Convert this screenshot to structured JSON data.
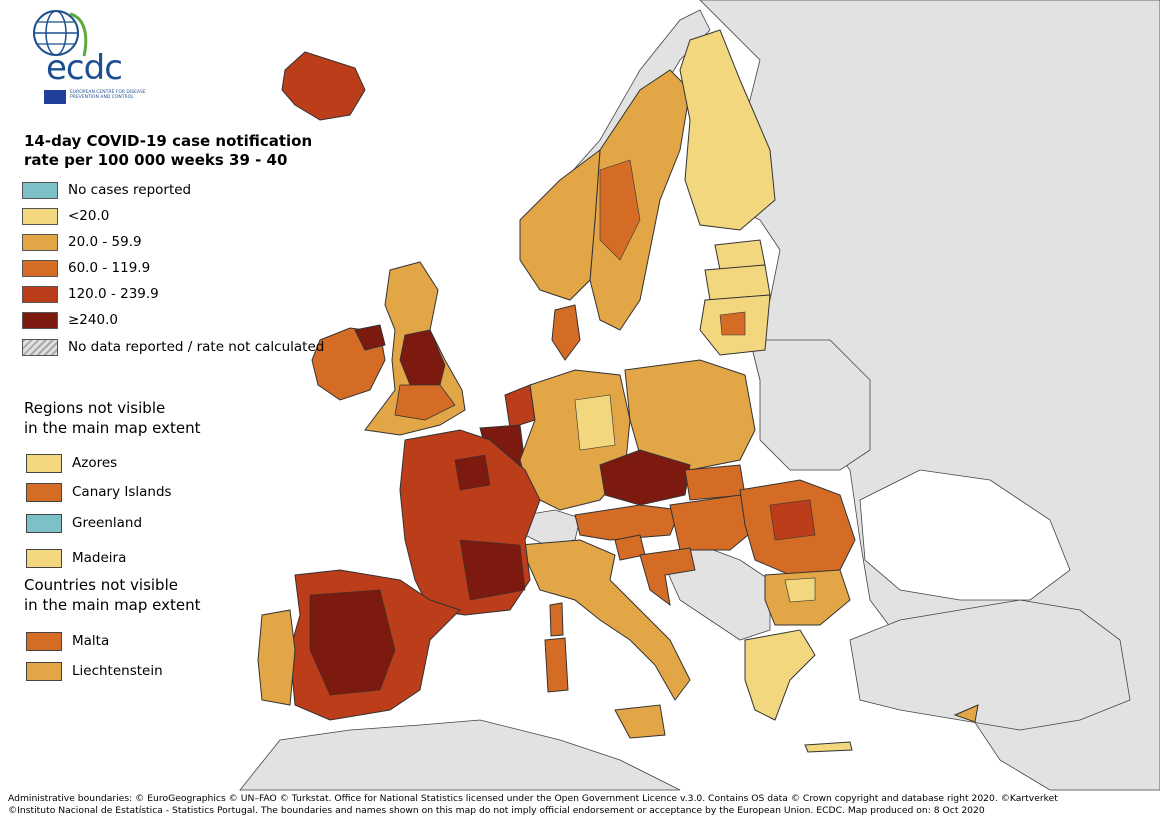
{
  "logo": {
    "word": "ecdc",
    "subtitle": "EUROPEAN CENTRE FOR DISEASE PREVENTION AND CONTROL"
  },
  "legend": {
    "title_line1": "14-day COVID-19 case notification",
    "title_line2": "rate per 100 000 weeks 39 - 40",
    "classes": [
      {
        "label": "No cases reported",
        "color": "#7cc0c8"
      },
      {
        "label": "<20.0",
        "color": "#f2d77f"
      },
      {
        "label": "20.0 - 59.9",
        "color": "#e3a646"
      },
      {
        "label": "60.0 - 119.9",
        "color": "#d46c26"
      },
      {
        "label": "120.0 - 239.9",
        "color": "#bb3d1a"
      },
      {
        "label": "≥240.0",
        "color": "#7d1a10"
      },
      {
        "label": "No data reported / rate not calculated",
        "color": "hatched"
      }
    ]
  },
  "regions_not_visible": {
    "heading_line1": "Regions not visible",
    "heading_line2": "in the main map extent",
    "items": [
      {
        "label": "Azores",
        "color": "#f2d77f"
      },
      {
        "label": "Canary Islands",
        "color": "#d46c26"
      },
      {
        "label": "Greenland",
        "color": "#7cc0c8"
      },
      {
        "label": "Madeira",
        "color": "#f2d77f"
      }
    ]
  },
  "countries_not_visible": {
    "heading_line1": "Countries not visible",
    "heading_line2": "in the main map extent",
    "items": [
      {
        "label": "Malta",
        "color": "#d46c26"
      },
      {
        "label": "Liechtenstein",
        "color": "#e3a646"
      }
    ]
  },
  "map_colors": {
    "sea": "#ffffff",
    "non_eu": "#e2e2e2",
    "border": "#333333"
  },
  "footer": {
    "line1": "Administrative boundaries: © EuroGeographics © UN–FAO © Turkstat. Office for National Statistics licensed under the Open Government Licence v.3.0. Contains OS data © Crown copyright and database right 2020. ©Kartverket",
    "line2": "©Instituto Nacional de Estatística - Statistics Portugal. The boundaries and names shown on this map do not imply official endorsement or acceptance by the European Union. ECDC. Map produced on: 8 Oct 2020"
  }
}
